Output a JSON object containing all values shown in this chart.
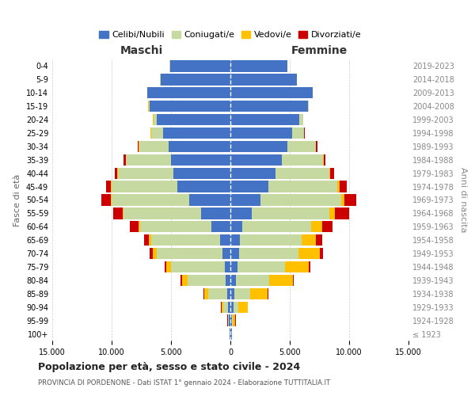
{
  "age_groups": [
    "100+",
    "95-99",
    "90-94",
    "85-89",
    "80-84",
    "75-79",
    "70-74",
    "65-69",
    "60-64",
    "55-59",
    "50-54",
    "45-49",
    "40-44",
    "35-39",
    "30-34",
    "25-29",
    "20-24",
    "15-19",
    "10-14",
    "5-9",
    "0-4"
  ],
  "birth_years": [
    "≤ 1923",
    "1924-1928",
    "1929-1933",
    "1934-1938",
    "1939-1943",
    "1944-1948",
    "1949-1953",
    "1954-1958",
    "1959-1963",
    "1964-1968",
    "1969-1973",
    "1974-1978",
    "1979-1983",
    "1984-1988",
    "1989-1993",
    "1994-1998",
    "1999-2003",
    "2004-2008",
    "2009-2013",
    "2014-2018",
    "2019-2023"
  ],
  "colors": {
    "single": "#4472c4",
    "married": "#c5d9a0",
    "widowed": "#ffc000",
    "divorced": "#cc0000"
  },
  "maschi": {
    "single": [
      50,
      120,
      200,
      300,
      400,
      500,
      700,
      900,
      1600,
      2500,
      3500,
      4500,
      4800,
      5000,
      5200,
      5700,
      6200,
      6800,
      7000,
      5900,
      5100
    ],
    "married": [
      10,
      80,
      400,
      1600,
      3200,
      4500,
      5500,
      5800,
      6000,
      6500,
      6500,
      5500,
      4700,
      3800,
      2500,
      1000,
      300,
      100,
      20,
      20,
      10
    ],
    "widowed": [
      5,
      30,
      150,
      300,
      500,
      400,
      350,
      200,
      150,
      100,
      80,
      60,
      30,
      20,
      10,
      10,
      10,
      10,
      5,
      5,
      5
    ],
    "divorced": [
      5,
      15,
      30,
      50,
      100,
      150,
      250,
      350,
      700,
      800,
      800,
      400,
      200,
      150,
      80,
      30,
      15,
      10,
      5,
      5,
      5
    ]
  },
  "femmine": {
    "single": [
      100,
      150,
      250,
      350,
      450,
      600,
      700,
      800,
      1000,
      1800,
      2500,
      3200,
      3800,
      4300,
      4800,
      5200,
      5800,
      6500,
      6900,
      5600,
      4800
    ],
    "married": [
      10,
      80,
      400,
      1300,
      2800,
      4000,
      5000,
      5200,
      5800,
      6500,
      6800,
      5800,
      4500,
      3500,
      2400,
      1000,
      300,
      100,
      20,
      20,
      10
    ],
    "widowed": [
      50,
      200,
      800,
      1500,
      2000,
      2000,
      1800,
      1200,
      900,
      500,
      300,
      200,
      100,
      50,
      20,
      15,
      10,
      10,
      5,
      5,
      5
    ],
    "divorced": [
      5,
      15,
      30,
      60,
      100,
      150,
      300,
      500,
      900,
      1200,
      1000,
      600,
      300,
      150,
      80,
      30,
      15,
      10,
      5,
      5,
      5
    ]
  },
  "title": "Popolazione per età, sesso e stato civile - 2024",
  "subtitle": "PROVINCIA DI PORDENONE - Dati ISTAT 1° gennaio 2024 - Elaborazione TUTTITALIA.IT",
  "xlabel_left": "Maschi",
  "xlabel_right": "Femmine",
  "ylabel_left": "Fasce di età",
  "ylabel_right": "Anni di nascita",
  "xlim": 15000,
  "legend_labels": [
    "Celibi/Nubili",
    "Coniugati/e",
    "Vedovi/e",
    "Divorziati/e"
  ],
  "background_color": "#ffffff"
}
